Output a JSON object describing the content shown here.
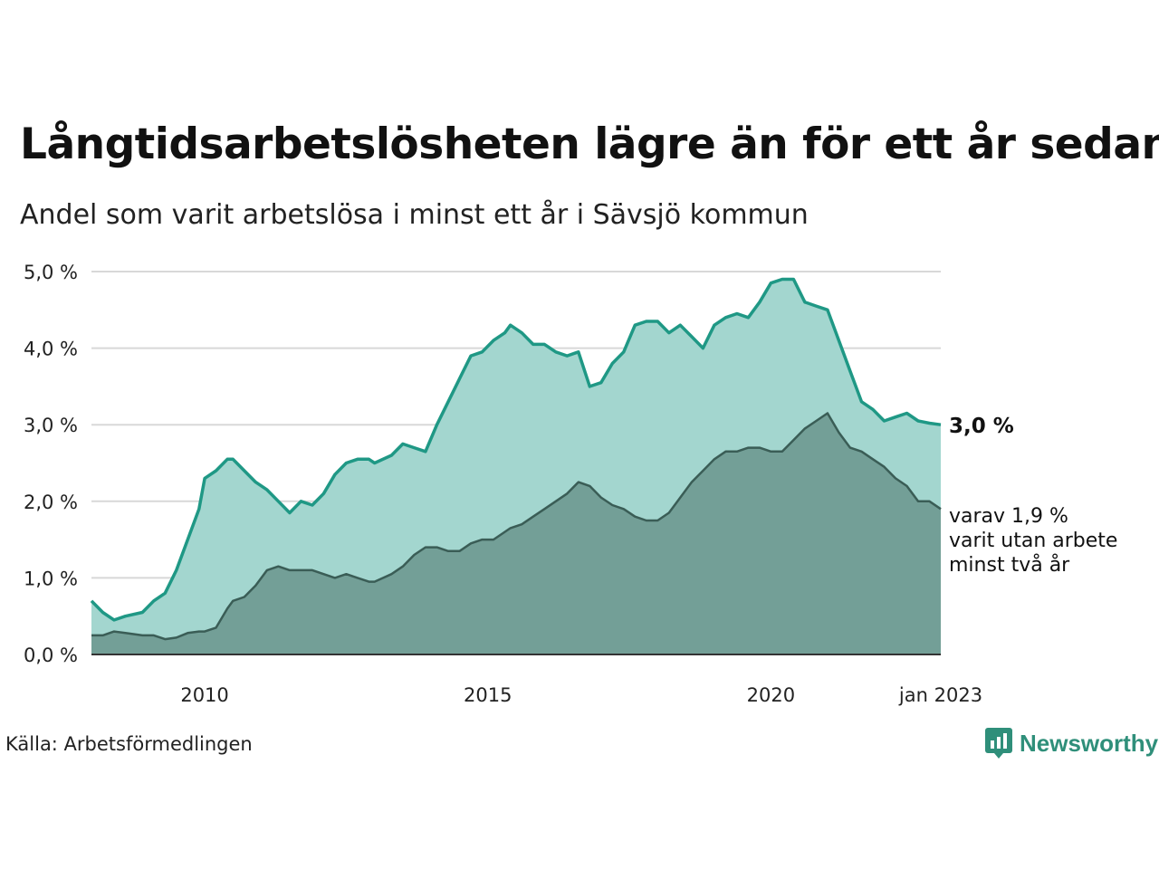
{
  "title": "Långtidsarbetslösheten lägre än för ett år sedan",
  "subtitle": "Andel som varit arbetslösa i minst ett år i Sävsjö kommun",
  "source": "Källa: Arbetsförmedlingen",
  "brand": "Newsworthy",
  "colors": {
    "upper_line": "#1f9885",
    "upper_fill": "#a3d6cf",
    "lower_line": "#3a5d56",
    "lower_fill": "#739f97",
    "grid": "#d8d8d8",
    "brand": "#2f8f7a"
  },
  "chart_data": {
    "type": "area",
    "x_range": [
      2008.0,
      2023.0
    ],
    "ylim": [
      0,
      5
    ],
    "y_ticks": [
      0,
      1,
      2,
      3,
      4,
      5
    ],
    "y_tick_labels": [
      "0,0 %",
      "1,0 %",
      "2,0 %",
      "3,0 %",
      "4,0 %",
      "5,0 %"
    ],
    "x_ticks": [
      2010,
      2015,
      2020,
      2023.0
    ],
    "x_tick_labels": [
      "2010",
      "2015",
      "2020",
      "jan 2023"
    ],
    "grid": true,
    "series": [
      {
        "x": [
          2008.0,
          2008.2,
          2008.4,
          2008.6,
          2008.9,
          2009.1,
          2009.3,
          2009.5,
          2009.7,
          2009.9,
          2010.0,
          2010.2,
          2010.4,
          2010.5,
          2010.7,
          2010.9,
          2011.1,
          2011.3,
          2011.5,
          2011.7,
          2011.9,
          2012.1,
          2012.3,
          2012.5,
          2012.7,
          2012.9,
          2013.0,
          2013.3,
          2013.5,
          2013.7,
          2013.9,
          2014.1,
          2014.3,
          2014.5,
          2014.7,
          2014.9,
          2015.1,
          2015.3,
          2015.4,
          2015.6,
          2015.8,
          2016.0,
          2016.2,
          2016.4,
          2016.6,
          2016.8,
          2017.0,
          2017.2,
          2017.4,
          2017.6,
          2017.8,
          2018.0,
          2018.2,
          2018.4,
          2018.6,
          2018.8,
          2019.0,
          2019.2,
          2019.4,
          2019.6,
          2019.8,
          2020.0,
          2020.2,
          2020.4,
          2020.6,
          2020.8,
          2021.0,
          2021.2,
          2021.4,
          2021.6,
          2021.8,
          2022.0,
          2022.2,
          2022.4,
          2022.6,
          2022.8,
          2023.0
        ],
        "values": [
          0.7,
          0.55,
          0.45,
          0.5,
          0.55,
          0.7,
          0.8,
          1.1,
          1.5,
          1.9,
          2.3,
          2.4,
          2.55,
          2.55,
          2.4,
          2.25,
          2.15,
          2.0,
          1.85,
          2.0,
          1.95,
          2.1,
          2.35,
          2.5,
          2.55,
          2.55,
          2.5,
          2.6,
          2.75,
          2.7,
          2.65,
          3.0,
          3.3,
          3.6,
          3.9,
          3.95,
          4.1,
          4.2,
          4.3,
          4.2,
          4.05,
          4.05,
          3.95,
          3.9,
          3.95,
          3.5,
          3.55,
          3.8,
          3.95,
          4.3,
          4.35,
          4.35,
          4.2,
          4.3,
          4.15,
          4.0,
          4.3,
          4.4,
          4.45,
          4.4,
          4.6,
          4.85,
          4.9,
          4.9,
          4.6,
          4.55,
          4.5,
          4.1,
          3.7,
          3.3,
          3.2,
          3.05,
          3.1,
          3.15,
          3.05,
          3.02,
          3.0
        ]
      },
      {
        "x": [
          2008.0,
          2008.2,
          2008.4,
          2008.6,
          2008.9,
          2009.1,
          2009.3,
          2009.5,
          2009.7,
          2009.9,
          2010.0,
          2010.2,
          2010.4,
          2010.5,
          2010.7,
          2010.9,
          2011.1,
          2011.3,
          2011.5,
          2011.7,
          2011.9,
          2012.1,
          2012.3,
          2012.5,
          2012.7,
          2012.9,
          2013.0,
          2013.3,
          2013.5,
          2013.7,
          2013.9,
          2014.1,
          2014.3,
          2014.5,
          2014.7,
          2014.9,
          2015.1,
          2015.3,
          2015.4,
          2015.6,
          2015.8,
          2016.0,
          2016.2,
          2016.4,
          2016.6,
          2016.8,
          2017.0,
          2017.2,
          2017.4,
          2017.6,
          2017.8,
          2018.0,
          2018.2,
          2018.4,
          2018.6,
          2018.8,
          2019.0,
          2019.2,
          2019.4,
          2019.6,
          2019.8,
          2020.0,
          2020.2,
          2020.4,
          2020.6,
          2020.8,
          2021.0,
          2021.2,
          2021.4,
          2021.6,
          2021.8,
          2022.0,
          2022.2,
          2022.4,
          2022.6,
          2022.8,
          2023.0
        ],
        "values": [
          0.25,
          0.25,
          0.3,
          0.28,
          0.25,
          0.25,
          0.2,
          0.22,
          0.28,
          0.3,
          0.3,
          0.35,
          0.6,
          0.7,
          0.75,
          0.9,
          1.1,
          1.15,
          1.1,
          1.1,
          1.1,
          1.05,
          1.0,
          1.05,
          1.0,
          0.95,
          0.95,
          1.05,
          1.15,
          1.3,
          1.4,
          1.4,
          1.35,
          1.35,
          1.45,
          1.5,
          1.5,
          1.6,
          1.65,
          1.7,
          1.8,
          1.9,
          2.0,
          2.1,
          2.25,
          2.2,
          2.05,
          1.95,
          1.9,
          1.8,
          1.75,
          1.75,
          1.85,
          2.05,
          2.25,
          2.4,
          2.55,
          2.65,
          2.65,
          2.7,
          2.7,
          2.65,
          2.65,
          2.8,
          2.95,
          3.05,
          3.15,
          2.9,
          2.7,
          2.65,
          2.55,
          2.45,
          2.3,
          2.2,
          2.0,
          2.0,
          1.9
        ]
      }
    ],
    "annotations": [
      {
        "text": "3,0 %"
      },
      {
        "lines": [
          "varav 1,9 %",
          "varit utan arbete",
          "minst två år"
        ]
      }
    ]
  }
}
